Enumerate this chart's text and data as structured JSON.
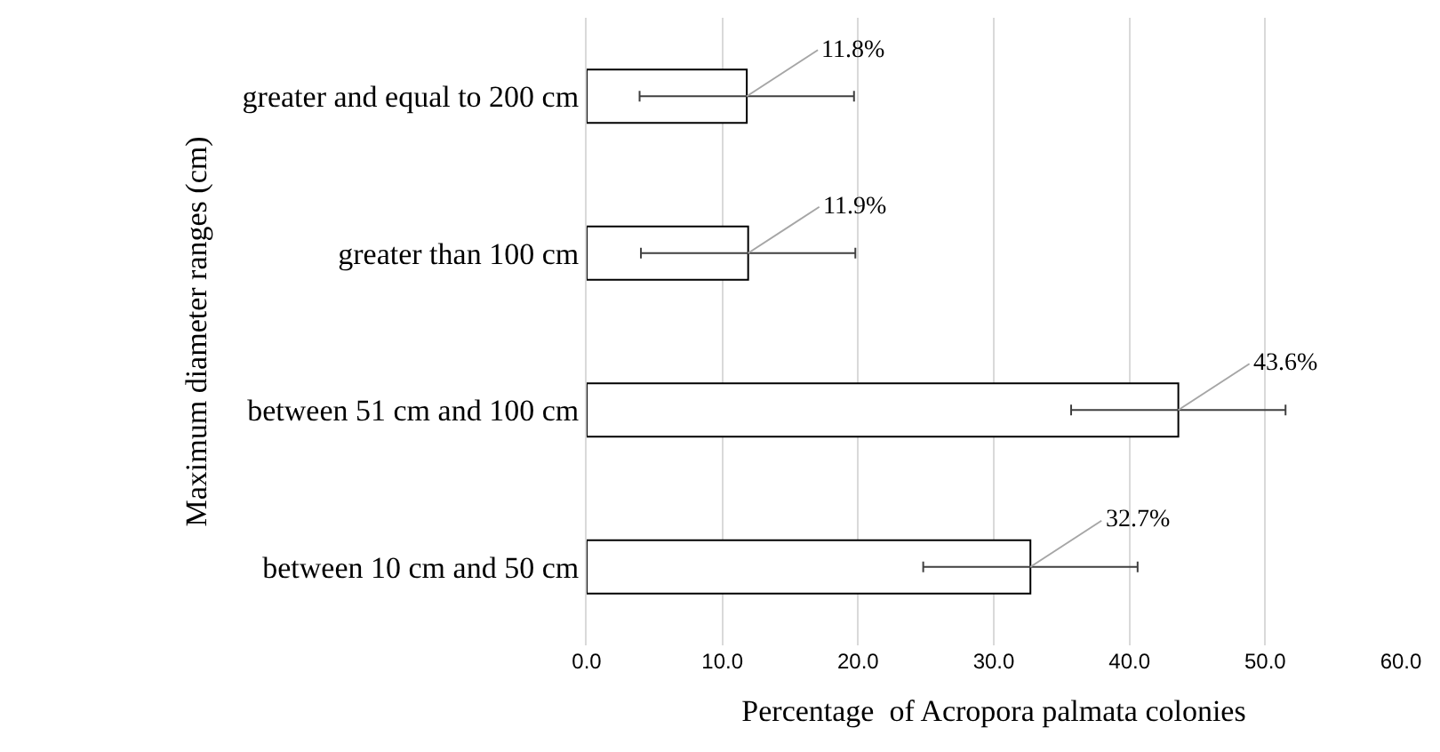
{
  "chart_data": {
    "type": "bar",
    "orientation": "horizontal",
    "categories": [
      "greater and equal to 200 cm",
      "greater than 100 cm",
      "between 51 cm and 100 cm",
      "between 10 cm and 50 cm"
    ],
    "values": [
      11.8,
      11.9,
      43.6,
      32.7
    ],
    "color": "#ffffff",
    "errors": [
      7.9,
      7.9,
      7.9,
      7.9
    ],
    "value_labels": [
      "11.8%",
      "11.9%",
      "43.6%",
      "32.7%"
    ],
    "xlabel": "Percentage  of Acropora palmata colonies",
    "ylabel": "Maximum diameter ranges (cm)",
    "xlim": [
      0,
      60
    ],
    "xticks": [
      {
        "value": 0,
        "label": "0.0"
      },
      {
        "value": 10,
        "label": "10.0"
      },
      {
        "value": 20,
        "label": "20.0"
      },
      {
        "value": 30,
        "label": "30.0"
      },
      {
        "value": 40,
        "label": "40.0"
      },
      {
        "value": 50,
        "label": "50.0"
      },
      {
        "value": 60,
        "label": "60.0"
      }
    ],
    "grid": "x",
    "legend": false
  }
}
